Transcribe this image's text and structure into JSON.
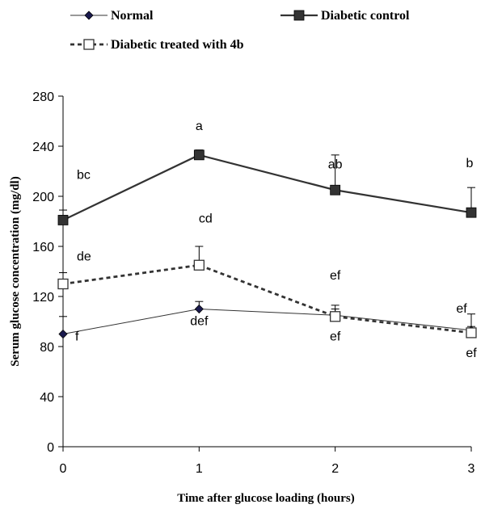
{
  "chart_data": {
    "type": "line",
    "xlabel": "Time after glucose loading  (hours)",
    "ylabel": "Serum glucose concentration (mg/dl)",
    "xlim": [
      0,
      3
    ],
    "ylim": [
      0,
      280
    ],
    "xticks": [
      0,
      1,
      2,
      3
    ],
    "yticks": [
      0,
      40,
      80,
      120,
      160,
      200,
      240,
      280
    ],
    "grid": false,
    "legend_position": "top",
    "x": [
      0,
      1,
      2,
      3
    ],
    "series": [
      {
        "name": "Normal",
        "values": [
          90,
          110,
          105,
          93
        ],
        "errors": [
          14,
          6,
          8,
          3
        ],
        "marker": "diamond",
        "line": "solid",
        "color": "#333333",
        "marker_color": "#1a1a4e",
        "annotations": [
          "f",
          "def",
          "ef",
          "ef"
        ]
      },
      {
        "name": "Diabetic control",
        "values": [
          181,
          233,
          205,
          187
        ],
        "errors": [
          8,
          4,
          28,
          20
        ],
        "marker": "square-filled",
        "line": "solid-thick",
        "color": "#333333",
        "marker_color": "#333333",
        "annotations": [
          "bc",
          "a",
          "ab",
          "b"
        ]
      },
      {
        "name": "Diabetic treated with 4b",
        "values": [
          130,
          145,
          104,
          91
        ],
        "errors": [
          9,
          15,
          6,
          15
        ],
        "marker": "square-open",
        "line": "dashed",
        "color": "#333333",
        "marker_color": "#ffffff",
        "annotations": [
          "de",
          "cd",
          "ef",
          "ef"
        ]
      }
    ]
  }
}
